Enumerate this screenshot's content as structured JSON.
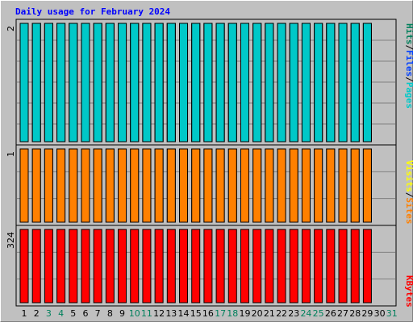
{
  "title": "Daily usage for February 2024",
  "chart_data": [
    {
      "type": "bar",
      "panel": "top",
      "series": [
        {
          "name": "Hits",
          "color": "#00805c",
          "values": [
            2,
            2,
            2,
            2,
            2,
            2,
            2,
            2,
            2,
            2,
            2,
            2,
            2,
            2,
            2,
            2,
            2,
            2,
            2,
            2,
            2,
            2,
            2,
            2,
            2,
            2,
            2,
            2,
            2
          ]
        },
        {
          "name": "Files",
          "color": "#0040ff",
          "values": [
            2,
            2,
            2,
            2,
            2,
            2,
            2,
            2,
            2,
            2,
            2,
            2,
            2,
            2,
            2,
            2,
            2,
            2,
            2,
            2,
            2,
            2,
            2,
            2,
            2,
            2,
            2,
            2,
            2
          ]
        },
        {
          "name": "Pages",
          "color": "#00c8c8",
          "values": [
            2,
            2,
            2,
            2,
            2,
            2,
            2,
            2,
            2,
            2,
            2,
            2,
            2,
            2,
            2,
            2,
            2,
            2,
            2,
            2,
            2,
            2,
            2,
            2,
            2,
            2,
            2,
            2,
            2
          ]
        }
      ],
      "ymax": 2,
      "ymax_label": "2"
    },
    {
      "type": "bar",
      "panel": "middle",
      "series": [
        {
          "name": "Visits",
          "color": "#ffff00",
          "values": [
            1,
            1,
            1,
            1,
            1,
            1,
            1,
            1,
            1,
            1,
            1,
            1,
            1,
            1,
            1,
            1,
            1,
            1,
            1,
            1,
            1,
            1,
            1,
            1,
            1,
            1,
            1,
            1,
            1
          ]
        },
        {
          "name": "Sites",
          "color": "#ff8000",
          "values": [
            1,
            1,
            1,
            1,
            1,
            1,
            1,
            1,
            1,
            1,
            1,
            1,
            1,
            1,
            1,
            1,
            1,
            1,
            1,
            1,
            1,
            1,
            1,
            1,
            1,
            1,
            1,
            1,
            1
          ]
        }
      ],
      "ymax": 1,
      "ymax_label": "1"
    },
    {
      "type": "bar",
      "panel": "bottom",
      "series": [
        {
          "name": "KBytes",
          "color": "#ff0000",
          "values": [
            324,
            324,
            324,
            324,
            324,
            324,
            324,
            324,
            324,
            324,
            324,
            324,
            324,
            324,
            324,
            324,
            324,
            324,
            324,
            324,
            324,
            324,
            324,
            324,
            324,
            324,
            324,
            324,
            324
          ]
        }
      ],
      "ymax": 324,
      "ymax_label": "324"
    }
  ],
  "x_labels": [
    {
      "text": "1",
      "weekend": false
    },
    {
      "text": "2",
      "weekend": false
    },
    {
      "text": "3",
      "weekend": true
    },
    {
      "text": "4",
      "weekend": true
    },
    {
      "text": "5",
      "weekend": false
    },
    {
      "text": "6",
      "weekend": false
    },
    {
      "text": "7",
      "weekend": false
    },
    {
      "text": "8",
      "weekend": false
    },
    {
      "text": "9",
      "weekend": false
    },
    {
      "text": "10",
      "weekend": true
    },
    {
      "text": "11",
      "weekend": true
    },
    {
      "text": "12",
      "weekend": false
    },
    {
      "text": "13",
      "weekend": false
    },
    {
      "text": "14",
      "weekend": false
    },
    {
      "text": "15",
      "weekend": false
    },
    {
      "text": "16",
      "weekend": false
    },
    {
      "text": "17",
      "weekend": true
    },
    {
      "text": "18",
      "weekend": true
    },
    {
      "text": "19",
      "weekend": false
    },
    {
      "text": "20",
      "weekend": false
    },
    {
      "text": "21",
      "weekend": false
    },
    {
      "text": "22",
      "weekend": false
    },
    {
      "text": "23",
      "weekend": false
    },
    {
      "text": "24",
      "weekend": true
    },
    {
      "text": "25",
      "weekend": true
    },
    {
      "text": "26",
      "weekend": false
    },
    {
      "text": "27",
      "weekend": false
    },
    {
      "text": "28",
      "weekend": false
    },
    {
      "text": "29",
      "weekend": false
    },
    {
      "text": "30",
      "weekend": false
    },
    {
      "text": "31",
      "weekend": true
    }
  ],
  "colors": {
    "weekday_label": "#000000",
    "weekend_label": "#00805c",
    "title": "#0000ff",
    "plot_bg": "#c0c0c0",
    "grid": "#808080"
  },
  "legend": {
    "top": [
      {
        "text": "Hits",
        "color": "#00805c"
      },
      {
        "text": "Files",
        "color": "#0040ff"
      },
      {
        "text": "Pages",
        "color": "#00c8c8"
      }
    ],
    "middle": [
      {
        "text": "Visits",
        "color": "#ffff00"
      },
      {
        "text": "Sites",
        "color": "#ff8000"
      }
    ],
    "bottom": [
      {
        "text": "KBytes",
        "color": "#ff0000"
      }
    ]
  }
}
